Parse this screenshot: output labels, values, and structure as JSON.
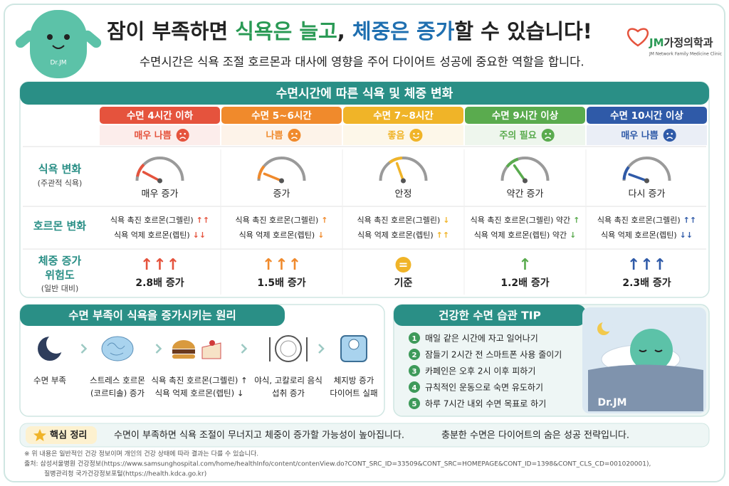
{
  "header": {
    "mascot_label": "Dr.JM",
    "title": [
      "잠이 부족하면 ",
      "식욕은 늘고",
      ", ",
      "체중은 증가",
      "할 수 있습니다!"
    ],
    "subtitle": "수면시간은 식욕 조절 호르몬과 대사에 영향을 주어 다이어트 성공에 중요한 역할을 합니다.",
    "logo": [
      "JM",
      "가정의학과"
    ],
    "logo_sub": "JM Network Family Medicine Clinic"
  },
  "table": {
    "title": "수면시간에 따른 식욕 및 체중 변화",
    "row_labels": [
      [
        "식욕 변화",
        "(주관적 식욕)"
      ],
      [
        "호르몬 변화"
      ],
      [
        "체중 증가",
        "위험도",
        "(일반 대비)"
      ]
    ],
    "columns": [
      {
        "header": "수면 4시간 이하",
        "color": "#e5533d",
        "status": "매우 나쁨",
        "appetite": "매우 증가",
        "hormones": [
          {
            "text": "식욕 촉진 호르몬(그렐린)",
            "arrow": "↑↑"
          },
          {
            "text": "식욕 억제 호르몬(렙틴)",
            "arrow": "↓↓"
          }
        ],
        "risk_icon": "↑↑↑",
        "risk": "2.8배 증가"
      },
      {
        "header": "수면 5~6시간",
        "color": "#f08a2c",
        "status": "나쁨",
        "appetite": "증가",
        "hormones": [
          {
            "text": "식욕 촉진 호르몬(그렐린)",
            "arrow": "↑"
          },
          {
            "text": "식욕 억제 호르몬(렙틴)",
            "arrow": "↓"
          }
        ],
        "risk_icon": "↑↑↑",
        "risk": "1.5배 증가"
      },
      {
        "header": "수면 7~8시간",
        "color": "#f0b428",
        "status": "좋음",
        "appetite": "안정",
        "hormones": [
          {
            "text": "식욕 촉진 호르몬(그렐린)",
            "arrow": "↓"
          },
          {
            "text": "식욕 억제 호르몬(렙틴)",
            "arrow": "↑↑"
          }
        ],
        "risk_icon": "=",
        "risk": "기준"
      },
      {
        "header": "수면 9시간 이상",
        "color": "#5aab4e",
        "status": "주의 필요",
        "appetite": "약간 증가",
        "hormones": [
          {
            "text": "식욕 촉진 호르몬(그렐린) 약간",
            "arrow": "↑"
          },
          {
            "text": "식욕 억제 호르몬(렙틴) 약간",
            "arrow": "↓"
          }
        ],
        "risk_icon": "↑",
        "risk": "1.2배 증가"
      },
      {
        "header": "수면 10시간 이상",
        "color": "#2f5aa8",
        "status": "매우 나쁨",
        "appetite": "다시 증가",
        "hormones": [
          {
            "text": "식욕 촉진 호르몬(그렐린)",
            "arrow": "↑↑"
          },
          {
            "text": "식욕 억제 호르몬(렙틴)",
            "arrow": "↓↓"
          }
        ],
        "risk_icon": "↑↑↑",
        "risk": "2.3배 증가"
      }
    ]
  },
  "mechanism": {
    "title": "수면 부족이 식욕을 증가시키는 원리",
    "steps": [
      [
        "수면 부족"
      ],
      [
        "스트레스 호르몬",
        "(코르티솔) 증가"
      ],
      [
        "식욕 촉진 호르몬(그렐린) ↑",
        "식욕 억제 호르몬(렙틴) ↓"
      ],
      [
        "야식, 고칼로리 음식",
        "섭취 증가"
      ],
      [
        "체지방 증가",
        "다이어트 실패"
      ]
    ]
  },
  "tips": {
    "title": "건강한 수면 습관 TIP",
    "items": [
      {
        "number": "1",
        "text": "매일 같은 시간에 자고 일어나기"
      },
      {
        "number": "2",
        "text": "잠들기 2시간 전 스마트폰 사용 줄이기"
      },
      {
        "number": "3",
        "text": "카페인은 오후 2시 이후 피하기"
      },
      {
        "number": "4",
        "text": "규칙적인 운동으로 숙면 유도하기"
      },
      {
        "number": "5",
        "text": "하루 7시간 내외 수면 목표로 하기"
      }
    ],
    "mascot_label": "Dr.JM"
  },
  "summary": {
    "label": "핵심 정리",
    "text1": "수면이 부족하면 식욕 조절이 무너지고 체중이 증가할 가능성이 높아집니다.",
    "text2": "충분한 수면은 다이어트의 숨은 성공 전략입니다."
  },
  "footnotes": [
    "※ 위 내용은 일반적인 건강 정보이며 개인의 건강 상태에 따라 결과는 다를 수 있습니다.",
    "출처: 삼성서울병원 건강정보(https://www.samsunghospital.com/home/healthInfo/content/contenView.do?CONT_SRC_ID=33509&CONT_SRC=HOMEPAGE&CONT_ID=1398&CONT_CLS_CD=001020001),",
    "질병관리청 국가건강정보포털(https://health.kdca.go.kr)"
  ]
}
